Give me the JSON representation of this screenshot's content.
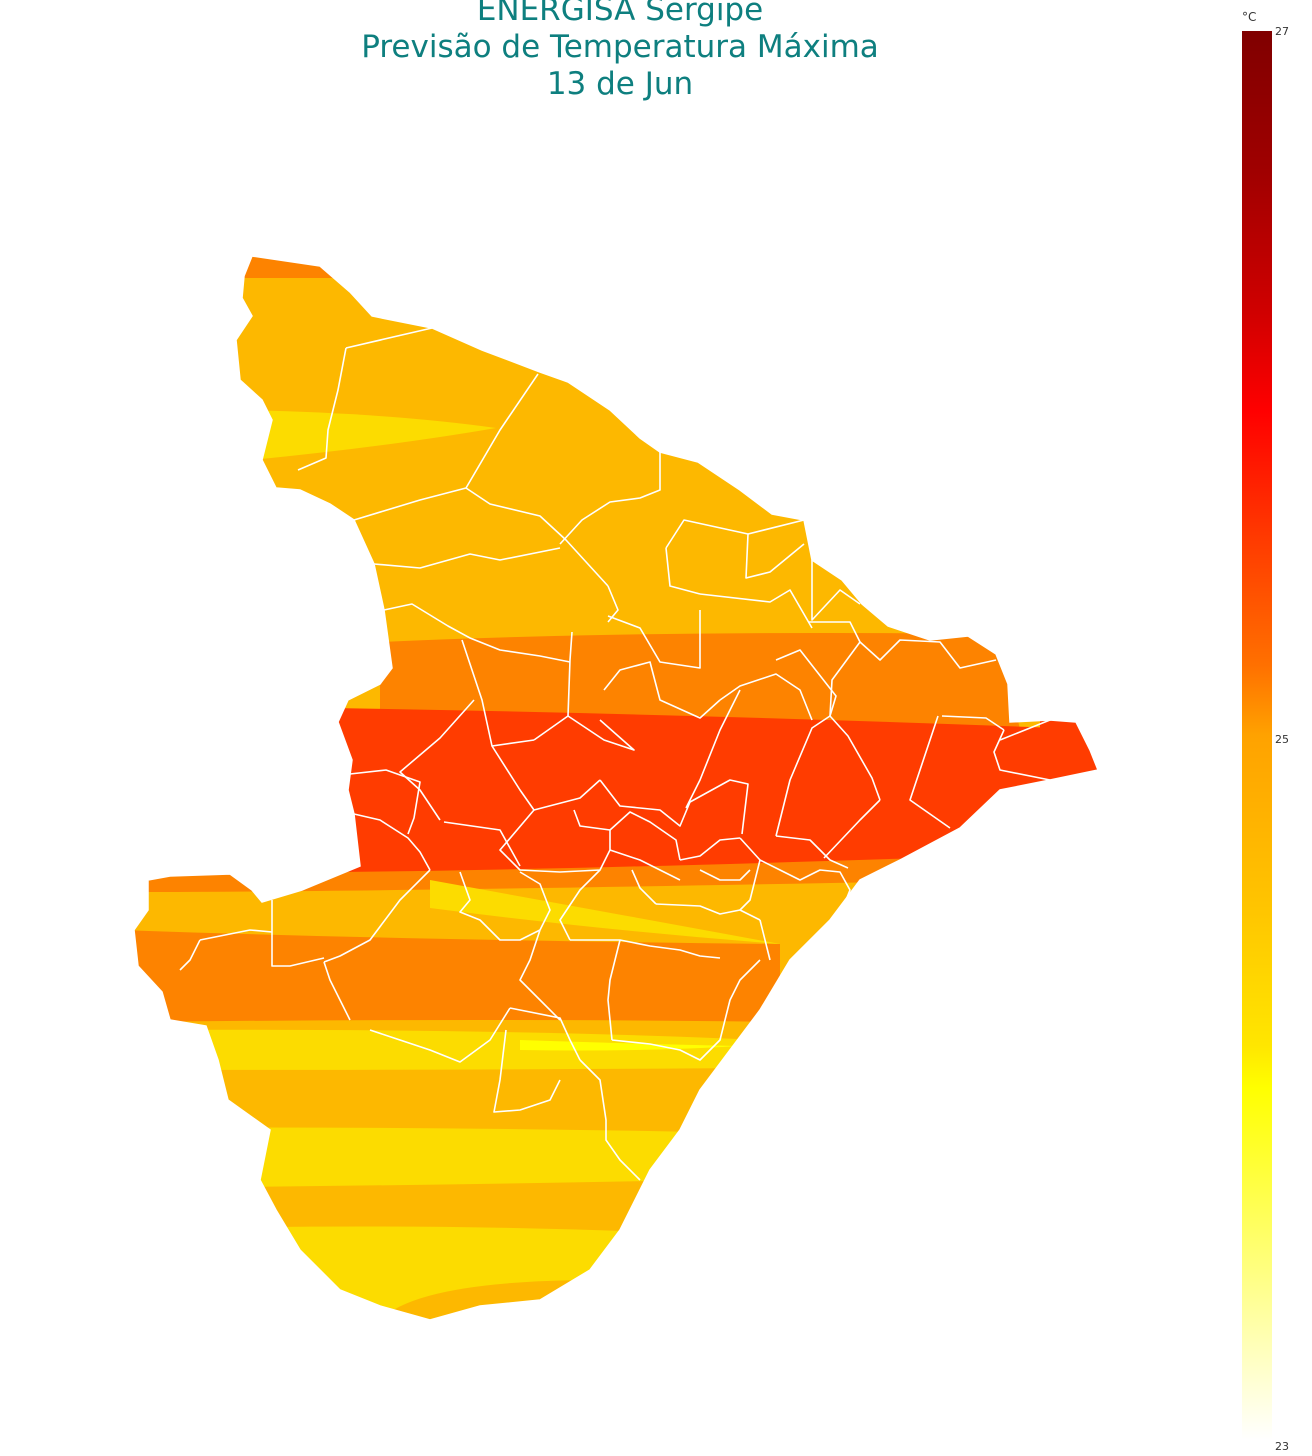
{
  "title": {
    "line1": "ENERGISA Sergipe",
    "line2": "Previsão de Temperatura Máxima",
    "line3": "13 de Jun"
  },
  "colorbar": {
    "unit": "°C",
    "max_label": "27",
    "mid_label": "25",
    "min_label": "23",
    "min": 23,
    "max": 27,
    "colors": [
      "#800000",
      "#ff0000",
      "#ff7000",
      "#ffa200",
      "#ffe600",
      "#ffff00",
      "#ffffff"
    ]
  },
  "map_colors": {
    "background": "#ffffff",
    "border": "#ffffff",
    "band_yellow": "#fcdc00",
    "band_amber": "#fdb800",
    "band_orange": "#fd8300",
    "band_redorange": "#ff3c00"
  }
}
